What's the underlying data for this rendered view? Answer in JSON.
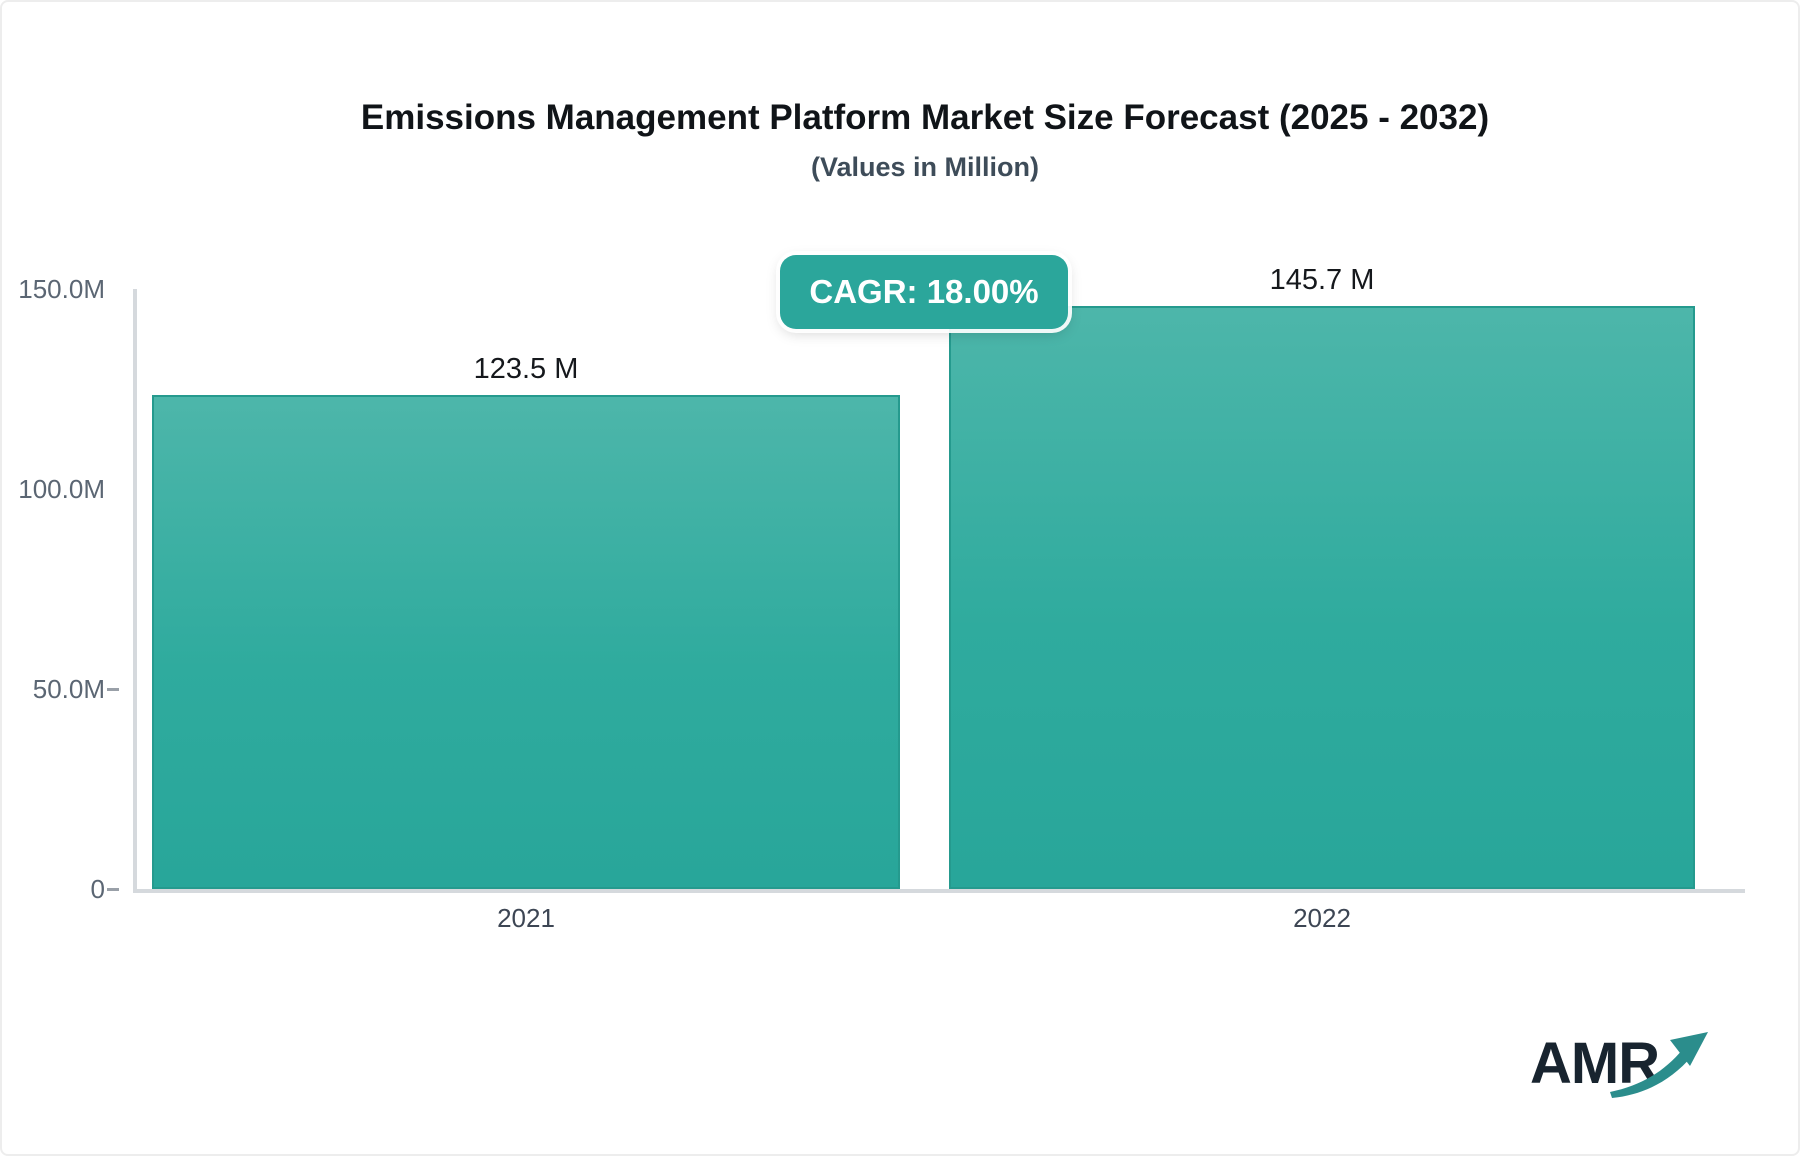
{
  "header": {
    "title": "Emissions Management Platform Market Size Forecast (2025 - 2032)",
    "subtitle": "(Values in Million)"
  },
  "cagr_badge": {
    "label": "CAGR: 18.00%",
    "background": "#2ba69b",
    "text_color": "#ffffff"
  },
  "chart_data": {
    "type": "bar",
    "categories": [
      "2021",
      "2022"
    ],
    "values": [
      123.5,
      145.7
    ],
    "value_labels": [
      "123.5 M",
      "145.7 M"
    ],
    "title": "Emissions Management Platform Market Size Forecast (2025 - 2032)",
    "subtitle": "(Values in Million)",
    "xlabel": "",
    "ylabel": "",
    "ylim": [
      0,
      150
    ],
    "y_ticks": [
      {
        "label": "150.0M",
        "value": 150,
        "dash": false
      },
      {
        "label": "100.0M",
        "value": 100,
        "dash": false
      },
      {
        "label": "50.0M",
        "value": 50,
        "dash": true
      },
      {
        "label": "0",
        "value": 0,
        "dash": true
      }
    ],
    "grid": false,
    "legend": false,
    "cagr": "18.00%",
    "colors": {
      "bar_gradient_top": "#4db6aa",
      "bar_gradient_bottom": "#28a69a",
      "bar_border": "#259a8e",
      "axis": "#d5d9dd",
      "y_label": "#5b6673",
      "x_label": "#3d4654",
      "value_label": "#15181c",
      "badge": "#2ba69b"
    }
  },
  "logo": {
    "text": "AMR",
    "navy": "#18242f",
    "teal": "#2b8d8c"
  }
}
